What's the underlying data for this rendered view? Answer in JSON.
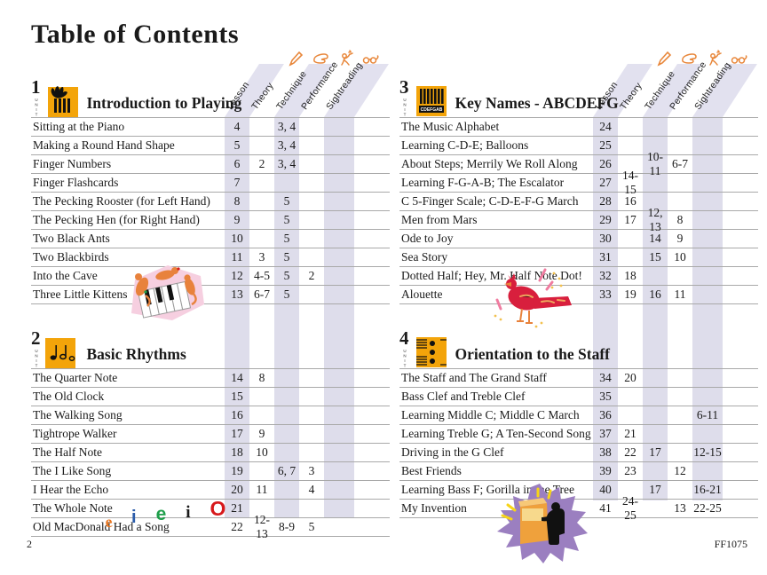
{
  "page": {
    "title": "Table of Contents",
    "page_number": "2",
    "catalog_number": "FF1075"
  },
  "table_columns": [
    "Lesson",
    "Theory",
    "Technique",
    "Performance",
    "Sightreading"
  ],
  "header_icons": [
    "pencil-icon",
    "hand-icon",
    "performer-icon",
    "glasses-icon"
  ],
  "colors": {
    "unit_badge_yellow": "#F3A40A",
    "stripe_lavender": "#DEDDEB",
    "icon_orange": "#E8873B",
    "bird_red": "#D81F3D",
    "star_purple": "#9B7FC0",
    "kitten_pink": "#F6CFE0"
  },
  "units": [
    {
      "number": "1",
      "unit_label": "UNIT",
      "title": "Introduction to Playing",
      "icon": "hand-on-keys-icon",
      "column": 0,
      "rows": [
        {
          "title": "Sitting at the Piano",
          "cells": [
            "4",
            "",
            "3, 4",
            "",
            ""
          ]
        },
        {
          "title": "Making a Round Hand Shape",
          "cells": [
            "5",
            "",
            "3, 4",
            "",
            ""
          ]
        },
        {
          "title": "Finger Numbers",
          "cells": [
            "6",
            "2",
            "3, 4",
            "",
            ""
          ]
        },
        {
          "title": "Finger Flashcards",
          "cells": [
            "7",
            "",
            "",
            "",
            ""
          ]
        },
        {
          "title": "The Pecking Rooster (for Left Hand)",
          "cells": [
            "8",
            "",
            "5",
            "",
            ""
          ]
        },
        {
          "title": "The Pecking Hen (for Right Hand)",
          "cells": [
            "9",
            "",
            "5",
            "",
            ""
          ]
        },
        {
          "title": "Two Black Ants",
          "cells": [
            "10",
            "",
            "5",
            "",
            ""
          ]
        },
        {
          "title": "Two Blackbirds",
          "cells": [
            "11",
            "3",
            "5",
            "",
            ""
          ]
        },
        {
          "title": "Into the Cave",
          "cells": [
            "12",
            "4-5",
            "5",
            "2",
            ""
          ]
        },
        {
          "title": "Three Little Kittens",
          "cells": [
            "13",
            "6-7",
            "5",
            "",
            ""
          ]
        }
      ]
    },
    {
      "number": "2",
      "unit_label": "UNIT",
      "title": "Basic Rhythms",
      "icon": "rhythm-notes-icon",
      "column": 0,
      "rows": [
        {
          "title": "The Quarter Note",
          "cells": [
            "14",
            "8",
            "",
            "",
            ""
          ]
        },
        {
          "title": "The Old Clock",
          "cells": [
            "15",
            "",
            "",
            "",
            ""
          ]
        },
        {
          "title": "The Walking Song",
          "cells": [
            "16",
            "",
            "",
            "",
            ""
          ]
        },
        {
          "title": "Tightrope Walker",
          "cells": [
            "17",
            "9",
            "",
            "",
            ""
          ]
        },
        {
          "title": "The Half Note",
          "cells": [
            "18",
            "10",
            "",
            "",
            ""
          ]
        },
        {
          "title": "The I Like Song",
          "cells": [
            "19",
            "",
            "6, 7",
            "3",
            ""
          ]
        },
        {
          "title": "I Hear the Echo",
          "cells": [
            "20",
            "11",
            "",
            "4",
            ""
          ]
        },
        {
          "title": "The Whole Note",
          "cells": [
            "21",
            "",
            "",
            "",
            ""
          ]
        },
        {
          "title": "Old MacDonald Had a Song",
          "cells": [
            "22",
            "12-13",
            "8-9",
            "5",
            ""
          ]
        }
      ]
    },
    {
      "number": "3",
      "unit_label": "UNIT",
      "title": "Key Names - ABCDEFG",
      "icon": "keyboard-cdefgab-icon",
      "column": 1,
      "rows": [
        {
          "title": "The Music Alphabet",
          "cells": [
            "24",
            "",
            "",
            "",
            ""
          ]
        },
        {
          "title": "Learning C-D-E; Balloons",
          "cells": [
            "25",
            "",
            "",
            "",
            ""
          ]
        },
        {
          "title": "About Steps; Merrily We Roll Along",
          "cells": [
            "26",
            "",
            "10-11",
            "6-7",
            ""
          ]
        },
        {
          "title": "Learning F-G-A-B; The Escalator",
          "cells": [
            "27",
            "14-15",
            "",
            "",
            ""
          ]
        },
        {
          "title": "C 5-Finger Scale; C-D-E-F-G March",
          "cells": [
            "28",
            "16",
            "",
            "",
            ""
          ]
        },
        {
          "title": "Men from Mars",
          "cells": [
            "29",
            "17",
            "12, 13",
            "8",
            ""
          ]
        },
        {
          "title": "Ode to Joy",
          "cells": [
            "30",
            "",
            "14",
            "9",
            ""
          ]
        },
        {
          "title": "Sea Story",
          "cells": [
            "31",
            "",
            "15",
            "10",
            ""
          ]
        },
        {
          "title": "Dotted Half; Hey, Mr. Half Note Dot!",
          "cells": [
            "32",
            "18",
            "",
            "",
            ""
          ]
        },
        {
          "title": "Alouette",
          "cells": [
            "33",
            "19",
            "16",
            "11",
            ""
          ]
        }
      ]
    },
    {
      "number": "4",
      "unit_label": "UNIT",
      "title": "Orientation to the Staff",
      "icon": "grand-staff-icon",
      "column": 1,
      "rows": [
        {
          "title": "The Staff and The Grand Staff",
          "cells": [
            "34",
            "20",
            "",
            "",
            ""
          ]
        },
        {
          "title": "Bass Clef and Treble Clef",
          "cells": [
            "35",
            "",
            "",
            "",
            ""
          ]
        },
        {
          "title": "Learning Middle C; Middle C March",
          "cells": [
            "36",
            "",
            "",
            "",
            "6-11"
          ]
        },
        {
          "title": "Learning Treble G; A Ten-Second Song",
          "cells": [
            "37",
            "21",
            "",
            "",
            ""
          ]
        },
        {
          "title": "Driving in the G Clef",
          "cells": [
            "38",
            "22",
            "17",
            "",
            "12-15"
          ]
        },
        {
          "title": "Best Friends",
          "cells": [
            "39",
            "23",
            "",
            "12",
            ""
          ]
        },
        {
          "title": "Learning Bass F; Gorilla in the Tree",
          "cells": [
            "40",
            "",
            "17",
            "",
            "16-21"
          ]
        },
        {
          "title": "My Invention",
          "cells": [
            "41",
            "24-25",
            "",
            "13",
            "22-25"
          ]
        }
      ]
    }
  ],
  "decorations": {
    "eieio": [
      {
        "char": "e",
        "color": "#E87722"
      },
      {
        "char": "i",
        "color": "#2A5CAA"
      },
      {
        "char": "e",
        "color": "#1E9E4A"
      },
      {
        "char": "i",
        "color": "#1A1A1A"
      },
      {
        "char": "O",
        "color": "#D7191C"
      }
    ],
    "illustrations": [
      "kittens-on-piano-keys",
      "red-bird",
      "inventor-starburst"
    ]
  }
}
